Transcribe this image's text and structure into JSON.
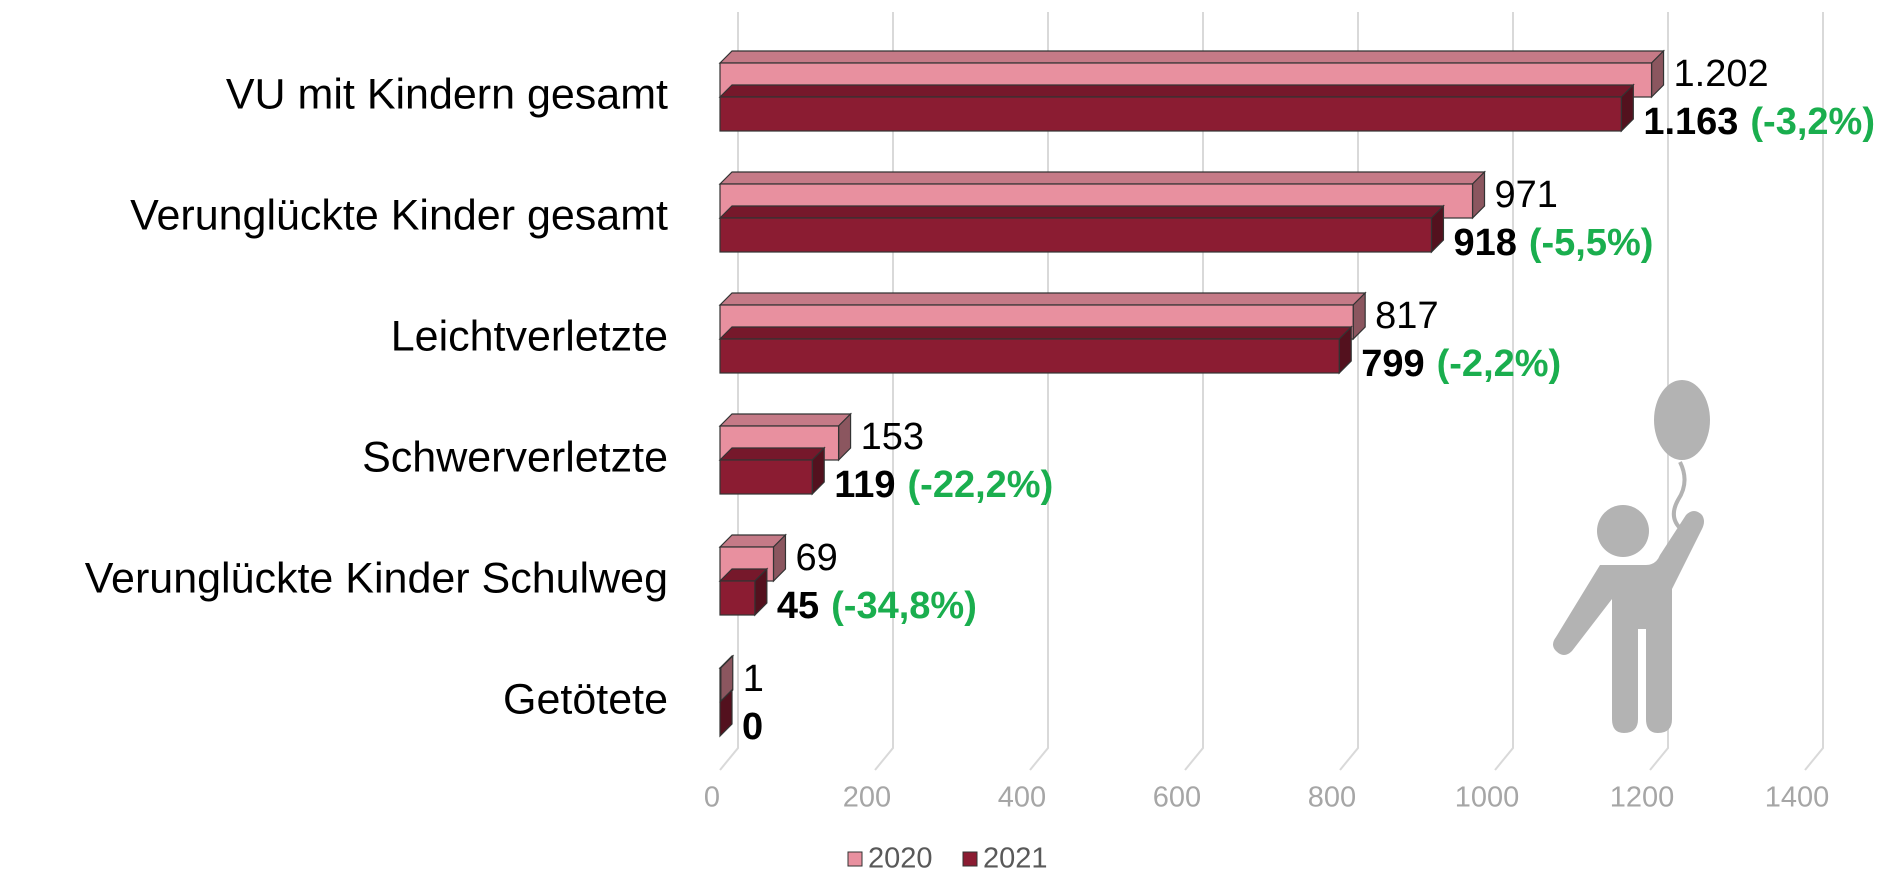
{
  "chart_data": {
    "type": "bar",
    "orientation": "horizontal",
    "categories": [
      "VU mit Kindern gesamt",
      "Verunglückte Kinder gesamt",
      "Leichtverletzte",
      "Schwerverletzte",
      "Verunglückte Kinder Schulweg",
      "Getötete"
    ],
    "series": [
      {
        "name": "2020",
        "color": "#e8909f",
        "values": [
          1202,
          971,
          817,
          153,
          69,
          1
        ],
        "value_labels": [
          "1.202",
          "971",
          "817",
          "153",
          "69",
          "1"
        ]
      },
      {
        "name": "2021",
        "color": "#8b1c32",
        "values": [
          1163,
          918,
          799,
          119,
          45,
          0
        ],
        "value_labels": [
          "1.163",
          "918",
          "799",
          "119",
          "45",
          "0"
        ]
      }
    ],
    "annotations": [
      "(-3,2%)",
      "(-5,5%)",
      "(-2,2%)",
      "(-22,2%)",
      "(-34,8%)",
      null
    ],
    "xlim": [
      0,
      1400
    ],
    "xticks": [
      0,
      200,
      400,
      600,
      800,
      1000,
      1200,
      1400
    ],
    "grid": true,
    "legend": "bottom"
  }
}
